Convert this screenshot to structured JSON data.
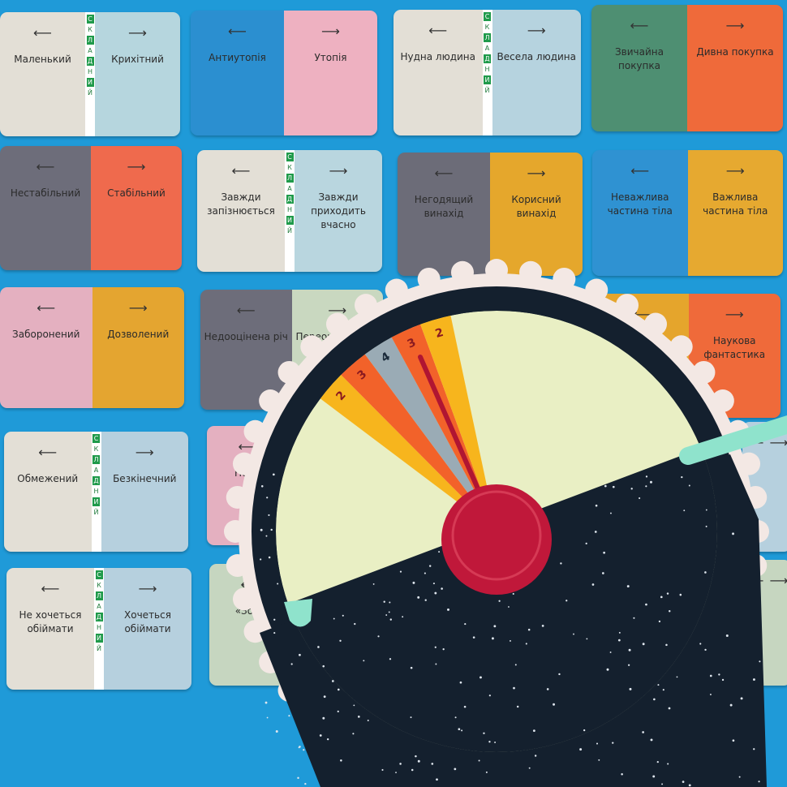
{
  "strip_label": "СКЛАДНИЙ",
  "cards": [
    {
      "left": "Маленький",
      "right": "Крихітний",
      "lc": "#e3dfd6",
      "rc": "#b6d6de",
      "strip": true
    },
    {
      "left": "Антиутопія",
      "right": "Утопія",
      "lc": "#2b8fd0",
      "rc": "#eeb1c1",
      "strip": false
    },
    {
      "left": "Нудна людина",
      "right": "Весела людина",
      "lc": "#e3dfd6",
      "rc": "#b6d3df",
      "strip": true
    },
    {
      "left": "Звичайна покупка",
      "right": "Дивна покупка",
      "lc": "#4e8f72",
      "rc": "#ef6a3a",
      "strip": false
    },
    {
      "left": "Нестабільний",
      "right": "Стабільний",
      "lc": "#6d6d7a",
      "rc": "#ef6a4d",
      "strip": false
    },
    {
      "left": "Завжди запізнюється",
      "right": "Завжди приходить вчасно",
      "lc": "#e3dfd6",
      "rc": "#b9d6df",
      "strip": true
    },
    {
      "left": "Негодящий винахід",
      "right": "Корисний винахід",
      "lc": "#6c6c78",
      "rc": "#e5a72c",
      "strip": false
    },
    {
      "left": "Неважлива частина тіла",
      "right": "Важлива частина тіла",
      "lc": "#2f92d2",
      "rc": "#e6a930",
      "strip": false
    },
    {
      "left": "Заборонений",
      "right": "Дозволений",
      "lc": "#e4b0c0",
      "rc": "#e4a530",
      "strip": false
    },
    {
      "left": "Недооцінена річ",
      "right": "Переоцінена річ",
      "lc": "#6d6d7a",
      "rc": "#c9d8c0",
      "strip": false
    },
    {
      "left": "",
      "right": "Наукова фантастика",
      "lc": "#e5a52c",
      "rc": "#ef6a3a",
      "strip": false
    },
    {
      "left": "Обмежений",
      "right": "Безкінечний",
      "lc": "#e3dfd6",
      "rc": "#b6d0de",
      "strip": true
    },
    {
      "left": "Недо",
      "right": "",
      "lc": "#e4b0c0",
      "rc": "#e4b0c0",
      "strip": false
    },
    {
      "left": "",
      "right": "",
      "lc": "#b6d0de",
      "rc": "#b6d0de",
      "strip": false
    },
    {
      "left": "Не хочеться обіймати",
      "right": "Хочеться обіймати",
      "lc": "#e3dfd6",
      "rc": "#b6d0de",
      "strip": true
    },
    {
      "left": "«Зо ві",
      "right": "",
      "lc": "#c6d6c0",
      "rc": "#c6d6c0",
      "strip": false
    },
    {
      "left": "",
      "right": "",
      "lc": "#c6d6c0",
      "rc": "#c6d6c0",
      "strip": false
    }
  ],
  "arrows": {
    "left": "⟵",
    "right": "⟶"
  },
  "wheel": {
    "scores": [
      "2",
      "3",
      "4",
      "3",
      "2"
    ],
    "score_colors": [
      "#f7b51d",
      "#f2622a",
      "#9aabb5",
      "#f2622a",
      "#f7b51d"
    ],
    "face_color": "#e9efc4",
    "screen_color": "#14202e",
    "knob_color": "#c0183a",
    "handle_color": "#8fe3cc"
  }
}
